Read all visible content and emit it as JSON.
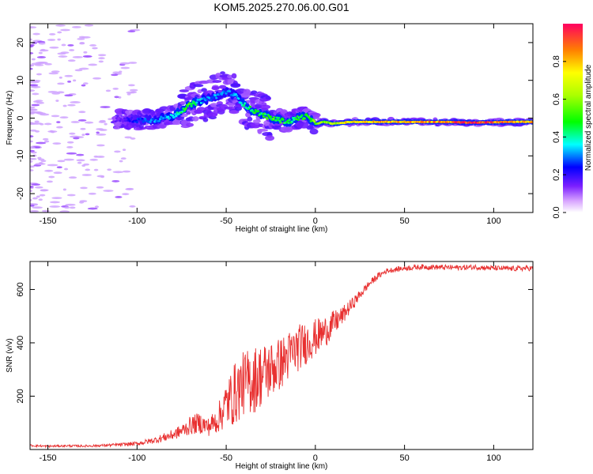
{
  "title": "KOM5.2025.270.06.00.G01",
  "chart_data": [
    {
      "type": "heatmap",
      "xlabel": "Height of straight line (km)",
      "ylabel": "Frequency (Hz)",
      "xlim": [
        -160,
        122
      ],
      "ylim": [
        -25,
        25
      ],
      "xticks": [
        -150,
        -100,
        -50,
        0,
        50,
        100
      ],
      "yticks": [
        -20,
        -10,
        0,
        10,
        20
      ],
      "colorbar": {
        "label": "Normalized spectral amplitude",
        "range": [
          0,
          1
        ],
        "ticks": [
          0.0,
          0.2,
          0.4,
          0.6,
          0.8
        ]
      },
      "ridge": {
        "x": [
          -110,
          -100,
          -90,
          -80,
          -75,
          -70,
          -65,
          -60,
          -55,
          -50,
          -45,
          -40,
          -35,
          -30,
          -25,
          -20,
          -15,
          -10,
          -5,
          0,
          5,
          10,
          20,
          30,
          50,
          70,
          90,
          110,
          122
        ],
        "freq": [
          -0.5,
          -0.5,
          -0.5,
          0.5,
          2,
          3.5,
          4.5,
          5,
          6,
          7,
          6,
          3.5,
          2,
          1,
          0,
          -0.5,
          -1,
          0,
          0.5,
          -1.5,
          -1,
          -1.5,
          -1,
          -1,
          -1,
          -1,
          -1.2,
          -1,
          -1
        ],
        "amplitude": [
          0.15,
          0.25,
          0.3,
          0.35,
          0.45,
          0.5,
          0.35,
          0.3,
          0.3,
          0.3,
          0.3,
          0.4,
          0.45,
          0.45,
          0.5,
          0.5,
          0.45,
          0.45,
          0.5,
          0.55,
          0.6,
          0.65,
          0.75,
          0.8,
          0.8,
          0.85,
          0.95,
          0.85,
          0.8
        ]
      }
    },
    {
      "type": "line",
      "xlabel": "Height of straight line (km)",
      "ylabel": "SNR (v/v)",
      "xlim": [
        -160,
        122
      ],
      "ylim": [
        0,
        705
      ],
      "xticks": [
        -150,
        -100,
        -50,
        0,
        50,
        100
      ],
      "yticks": [
        200,
        400,
        600
      ],
      "series": [
        {
          "name": "SNR",
          "color": "#e83030",
          "x": [
            -160,
            -150,
            -140,
            -130,
            -120,
            -110,
            -100,
            -90,
            -85,
            -80,
            -75,
            -70,
            -65,
            -60,
            -55,
            -50,
            -45,
            -40,
            -35,
            -30,
            -25,
            -20,
            -15,
            -10,
            -5,
            0,
            5,
            10,
            15,
            20,
            25,
            30,
            35,
            40,
            50,
            60,
            70,
            80,
            90,
            100,
            110,
            122
          ],
          "y": [
            15,
            12,
            14,
            13,
            15,
            18,
            22,
            35,
            45,
            55,
            70,
            90,
            100,
            85,
            110,
            170,
            210,
            250,
            260,
            280,
            300,
            320,
            350,
            380,
            400,
            420,
            440,
            470,
            500,
            540,
            580,
            620,
            650,
            670,
            680,
            685,
            683,
            682,
            684,
            680,
            678,
            680
          ],
          "noise": [
            4,
            4,
            4,
            4,
            5,
            6,
            8,
            12,
            16,
            20,
            25,
            35,
            40,
            35,
            50,
            90,
            120,
            120,
            130,
            120,
            110,
            100,
            95,
            90,
            80,
            70,
            60,
            50,
            35,
            25,
            18,
            14,
            12,
            10,
            10,
            10,
            10,
            10,
            10,
            10,
            10,
            10
          ]
        }
      ]
    }
  ]
}
